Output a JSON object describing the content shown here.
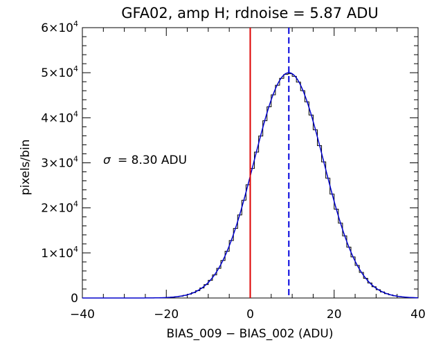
{
  "chart_data": {
    "type": "histogram",
    "title": "GFA02, amp H; rdnoise = 5.87 ADU",
    "xlabel": "BIAS_009 − BIAS_002 (ADU)",
    "ylabel": "pixels/bin",
    "xlim": [
      -40,
      40
    ],
    "ylim": [
      0,
      60000
    ],
    "x_ticks": [
      -40,
      -20,
      0,
      20,
      40
    ],
    "x_tick_labels": [
      "−40",
      "−20",
      "0",
      "20",
      "40"
    ],
    "y_ticks": [
      0,
      10000,
      20000,
      30000,
      40000,
      50000,
      60000
    ],
    "y_tick_labels": [
      {
        "mantissa": "0",
        "exponent": ""
      },
      {
        "mantissa": "1×10",
        "exponent": "4"
      },
      {
        "mantissa": "2×10",
        "exponent": "4"
      },
      {
        "mantissa": "3×10",
        "exponent": "4"
      },
      {
        "mantissa": "4×10",
        "exponent": "4"
      },
      {
        "mantissa": "5×10",
        "exponent": "4"
      },
      {
        "mantissa": "6×10",
        "exponent": "4"
      }
    ],
    "annotation": {
      "symbol": "σ",
      "text": "= 8.30 ADU"
    },
    "histogram": {
      "bin_width": 1,
      "x_start": -40,
      "x_end": 40,
      "peak": 49800,
      "mean": 9.2,
      "sigma": 8.3
    },
    "fit": {
      "amplitude": 50000,
      "mean": 9.2,
      "sigma": 8.3,
      "color": "#0000cc"
    },
    "vlines": [
      {
        "x": 0,
        "color": "#dd0000",
        "style": "solid"
      },
      {
        "x": 9.2,
        "color": "#0000dd",
        "style": "dashed"
      }
    ],
    "colors": {
      "histogram": "#000000",
      "axes": "#000000"
    },
    "grid": false
  }
}
